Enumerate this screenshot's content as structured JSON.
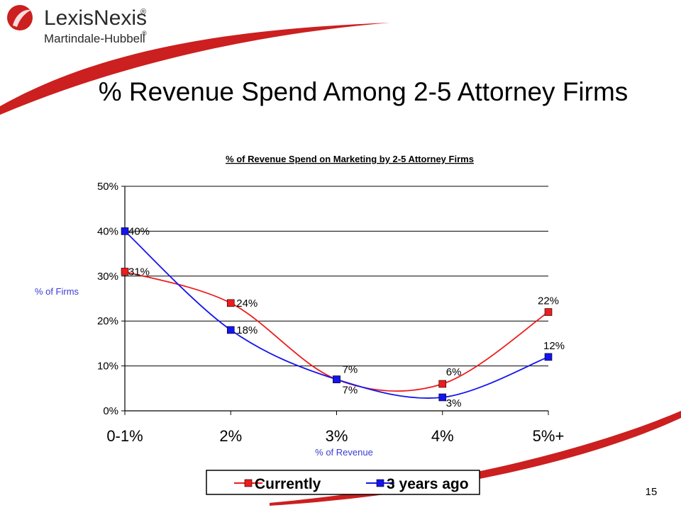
{
  "brand": {
    "name": "LexisNexis",
    "sub": "Martindale-Hubbell",
    "mark": "®",
    "accent": "#cc1f1f"
  },
  "slide": {
    "title": "% Revenue Spend Among 2-5 Attorney Firms",
    "page_number": "15"
  },
  "chart_data": {
    "type": "line",
    "title": "% of Revenue Spend on Marketing by 2-5 Attorney Firms",
    "xlabel": "% of Revenue",
    "ylabel": "% of Firms",
    "categories": [
      "0-1%",
      "2%",
      "3%",
      "4%",
      "5%+"
    ],
    "y_ticks": [
      "0%",
      "10%",
      "20%",
      "30%",
      "40%",
      "50%"
    ],
    "ylim": [
      0,
      50
    ],
    "grid": true,
    "legend": "bottom",
    "series": [
      {
        "name": "Currently",
        "color": "#ee1c1c",
        "values": [
          31,
          24,
          7,
          6,
          22
        ],
        "labels": [
          "31%",
          "24%",
          "7%",
          "6%",
          "22%"
        ]
      },
      {
        "name": "3 years ago",
        "color": "#1414ee",
        "values": [
          40,
          18,
          7,
          3,
          12
        ],
        "labels": [
          "40%",
          "18%",
          "7%",
          "3%",
          "12%"
        ]
      }
    ]
  }
}
